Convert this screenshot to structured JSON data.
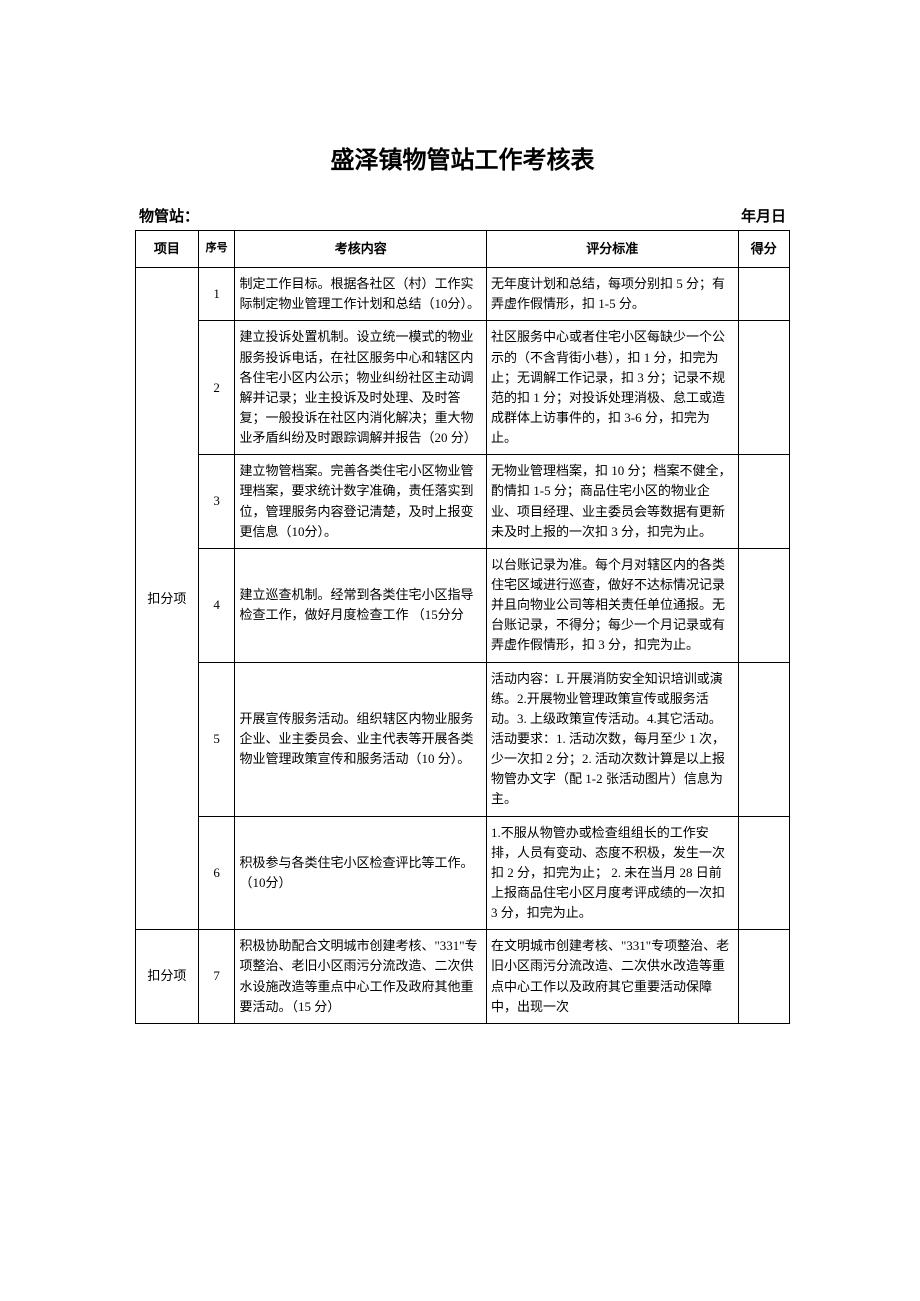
{
  "title": "盛泽镇物管站工作考核表",
  "meta": {
    "station_label": "物管站：",
    "date_label": "年月日"
  },
  "headers": {
    "project": "项目",
    "seq": "序号",
    "content": "考核内容",
    "criteria": "评分标准",
    "score": "得分"
  },
  "group1_label": "扣分项",
  "group2_label": "扣分项",
  "rows": [
    {
      "seq": "1",
      "content": "制定工作目标。根据各社区（村）工作实际制定物业管理工作计划和总结（10分）。",
      "criteria": "无年度计划和总结，每项分别扣 5 分；有弄虚作假情形，扣 1-5 分。"
    },
    {
      "seq": "2",
      "content": "建立投诉处置机制。设立统一模式的物业服务投诉电话，在社区服务中心和辖区内各住宅小区内公示；物业纠纷社区主动调解并记录；业主投诉及时处理、及时答复；一般投诉在社区内消化解决；重大物业矛盾纠纷及时跟踪调解并报告（20 分）",
      "criteria": "社区服务中心或者住宅小区每缺少一个公示的（不含背街小巷），扣 1 分，扣完为止；无调解工作记录，扣 3 分；记录不规范的扣 1 分；对投诉处理消极、怠工或造成群体上访事件的，扣 3-6 分，扣完为止。"
    },
    {
      "seq": "3",
      "content": "建立物管档案。完善各类住宅小区物业管理档案，要求统计数字准确，责任落实到位，管理服务内容登记清楚，及时上报变更信息（10分）。",
      "criteria": "无物业管理档案，扣 10 分；档案不健全，酌情扣 1-5 分；商品住宅小区的物业企业、项目经理、业主委员会等数据有更新未及时上报的一次扣 3 分，扣完为止。"
    },
    {
      "seq": "4",
      "content": "建立巡查机制。经常到各类住宅小区指导检查工作，做好月度检查工作\n（15分分",
      "criteria": "以台账记录为准。每个月对辖区内的各类住宅区域进行巡查，做好不达标情况记录并且向物业公司等相关责任单位通报。无台账记录，不得分；每少一个月记录或有弄虚作假情形，扣 3 分，扣完为止。"
    },
    {
      "seq": "5",
      "content": "开展宣传服务活动。组织辖区内物业服务企业、业主委员会、业主代表等开展各类物业管理政策宣传和服务活动（10 分）。",
      "criteria": "活动内容：L 开展消防安全知识培训或演练。2.开展物业管理政策宣传或服务活动。3. 上级政策宣传活动。4.其它活动。\n活动要求：1. 活动次数，每月至少 1 次，少一次扣 2 分；2. 活动次数计算是以上报物管办文字（配 1-2 张活动图片）信息为主。"
    },
    {
      "seq": "6",
      "content": "积极参与各类住宅小区检查评比等工作。（10分）",
      "criteria": "1.不服从物管办或检查组组长的工作安排，人员有变动、态度不积极，发生一次扣 2 分，扣完为止；\n2. 未在当月 28 日前上报商品住宅小区月度考评成绩的一次扣 3 分，扣完为止。"
    },
    {
      "seq": "7",
      "content": "积极协助配合文明城市创建考核、\"331\"专项整治、老旧小区雨污分流改造、二次供水设施改造等重点中心工作及政府其他重要活动。（15 分）",
      "criteria": "在文明城市创建考核、\"331\"专项整治、老旧小区雨污分流改造、二次供水改造等重点中心工作以及政府其它重要活动保障中，出现一次"
    }
  ]
}
